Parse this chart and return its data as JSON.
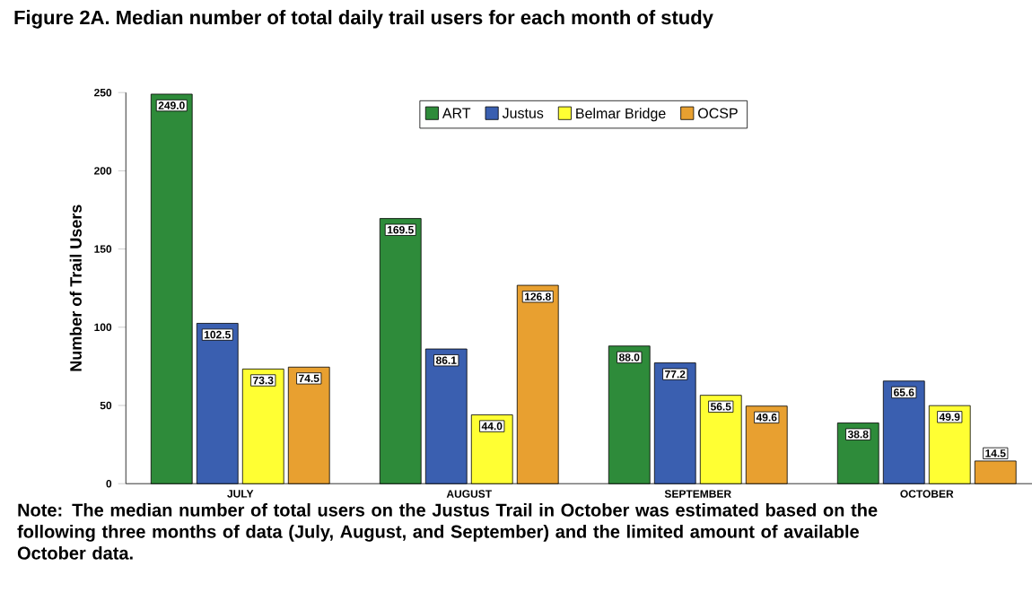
{
  "chart_data": {
    "type": "bar",
    "title": "Figure 2A.  Median number of total daily trail users for each month of study",
    "ylabel": "Number of Trail Users",
    "categories": [
      "JULY",
      "AUGUST",
      "SEPTEMBER",
      "OCTOBER"
    ],
    "series": [
      {
        "name": "ART",
        "color": "#2e8b3a",
        "values": [
          249.0,
          169.5,
          88.0,
          38.8
        ],
        "value_labels": [
          "249.0",
          "169.5",
          "88.0",
          "38.8"
        ]
      },
      {
        "name": "Justus",
        "color": "#3a5fb0",
        "values": [
          102.5,
          86.1,
          77.2,
          65.6
        ],
        "value_labels": [
          "102.5",
          "86.1",
          "77.2",
          "65.6"
        ]
      },
      {
        "name": "Belmar Bridge",
        "color": "#ffff33",
        "values": [
          73.3,
          44.0,
          56.5,
          49.9
        ],
        "value_labels": [
          "73.3",
          "44.0",
          "56.5",
          "49.9"
        ]
      },
      {
        "name": "OCSP",
        "color": "#e8a030",
        "values": [
          74.5,
          126.8,
          49.6,
          14.5
        ],
        "value_labels": [
          "74.5",
          "126.8",
          "49.6",
          "14.5"
        ]
      }
    ],
    "ylim": [
      0,
      250
    ],
    "yticks": [
      0,
      50,
      100,
      150,
      200,
      250
    ],
    "legend": "top",
    "annotations": [
      "Note:  The median number of total users on the Justus Trail in October was estimated based on the following three months of data (July, August, and September) and the limited amount of available October data."
    ]
  }
}
